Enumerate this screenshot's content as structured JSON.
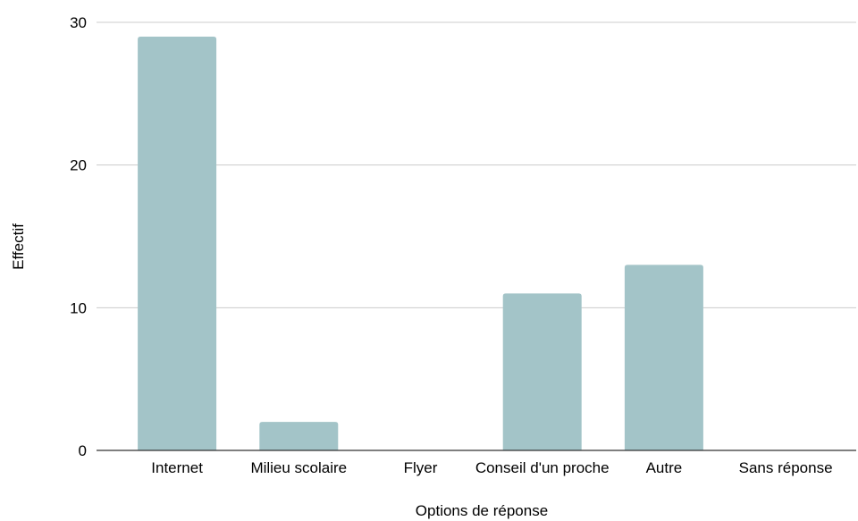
{
  "chart_data": {
    "type": "bar",
    "title": "",
    "xlabel": "Options de réponse",
    "ylabel": "Effectif",
    "categories": [
      "Internet",
      "Milieu scolaire",
      "Flyer",
      "Conseil d'un proche",
      "Autre",
      "Sans réponse"
    ],
    "values": [
      29,
      2,
      0,
      11,
      13,
      0
    ],
    "ylim": [
      0,
      30
    ],
    "yticks": [
      0,
      10,
      20,
      30
    ],
    "grid": true,
    "legend": "none",
    "colors": {
      "bar": "#a3c4c8",
      "grid": "#cccccc",
      "axis": "#333333"
    }
  }
}
